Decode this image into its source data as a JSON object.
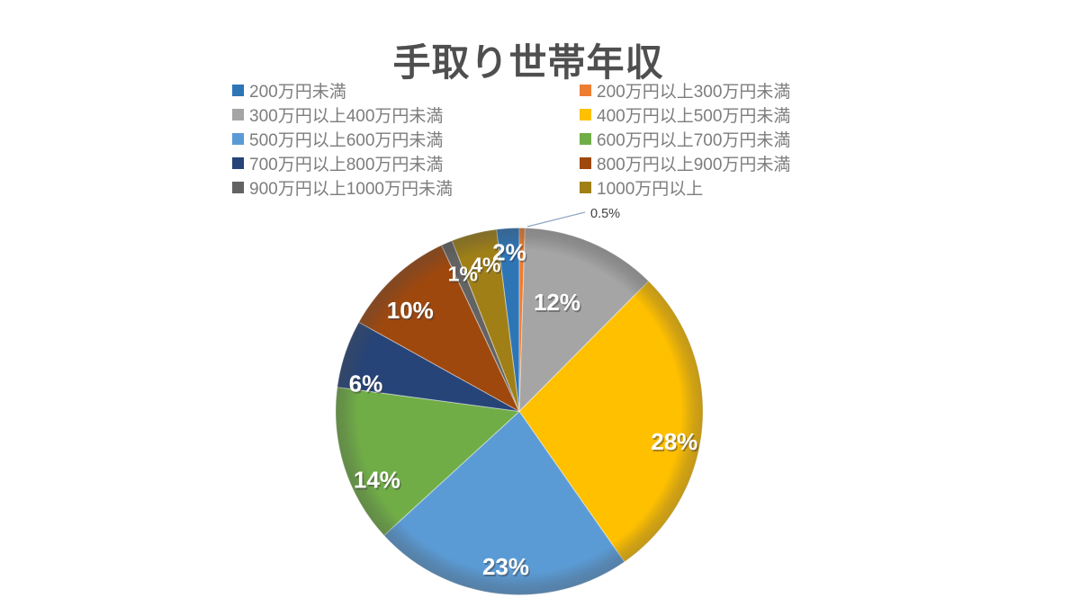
{
  "chart_data": {
    "type": "pie",
    "title": "手取り世帯年収",
    "unit": "%",
    "legend_position": "top-two-columns",
    "background": "#ffffff",
    "title_color": "#4f4f4f",
    "legend_text_color": "#7d7d7d",
    "label_text_color": "#ffffff",
    "callout_text_color": "#3f3f3f",
    "callout_line_color": "#8fa4c2",
    "slices": [
      {
        "label": "200万円未満",
        "value": 2,
        "display": "2%",
        "color": "#2E75B6"
      },
      {
        "label": "200万円以上300万円未満",
        "value": 0.5,
        "display": "0.5%",
        "color": "#ED7D31"
      },
      {
        "label": "300万円以上400万円未満",
        "value": 12,
        "display": "12%",
        "color": "#A5A5A5"
      },
      {
        "label": "400万円以上500万円未満",
        "value": 28,
        "display": "28%",
        "color": "#FFC000"
      },
      {
        "label": "500万円以上600万円未満",
        "value": 23,
        "display": "23%",
        "color": "#5B9BD5"
      },
      {
        "label": "600万円以上700万円未満",
        "value": 14,
        "display": "14%",
        "color": "#70AD47"
      },
      {
        "label": "700万円以上800万円未満",
        "value": 6,
        "display": "6%",
        "color": "#264478"
      },
      {
        "label": "800万円以上900万円未満",
        "value": 10,
        "display": "10%",
        "color": "#9E480E"
      },
      {
        "label": "900万円以上1000万円未満",
        "value": 1,
        "display": "1%",
        "color": "#636363"
      },
      {
        "label": "1000万円以上",
        "value": 4,
        "display": "4%",
        "color": "#A08016"
      }
    ]
  }
}
